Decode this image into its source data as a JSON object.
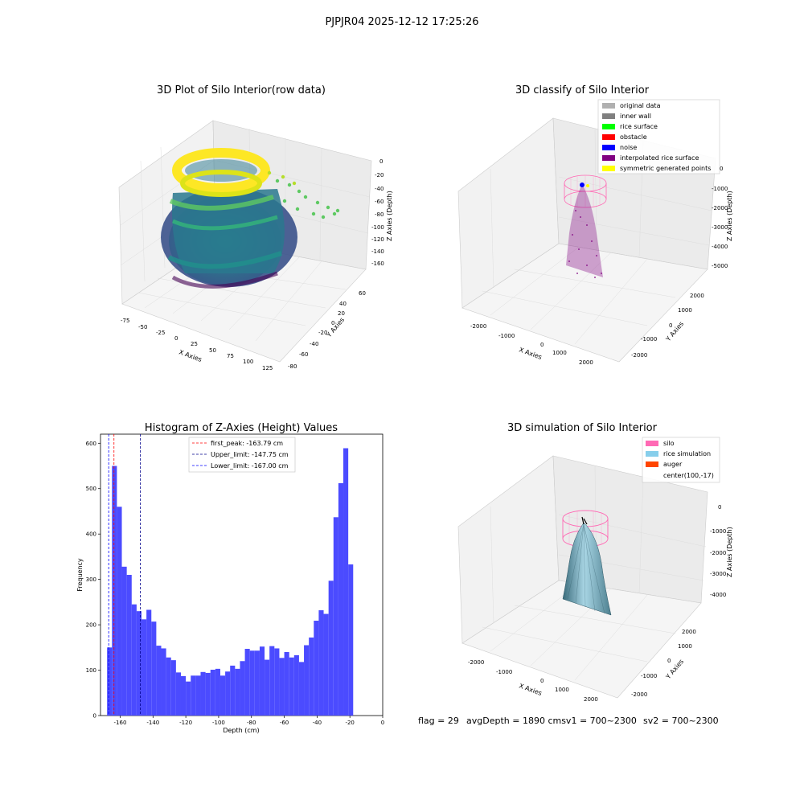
{
  "figure": {
    "title": "PJPJR04 2025-12-12 17:25:26",
    "footer": {
      "flag": "flag = 29",
      "avg_depth": "avgDepth = 1890 cmsv1 = 700~2300",
      "sv2": "sv2 = 700~2300"
    }
  },
  "chart_data": [
    {
      "type": "scatter3d",
      "title": "3D Plot of Silo Interior(row data)",
      "xlabel": "X Axies",
      "ylabel": "Y Axies",
      "zlabel": "Z Axies (Depth)",
      "xticks": [
        "-75",
        "-50",
        "-25",
        "0",
        "25",
        "50",
        "75",
        "100",
        "125"
      ],
      "yticks": [
        "60",
        "40",
        "20",
        "0",
        "-20",
        "-40",
        "-60",
        "-80"
      ],
      "zticks": [
        "0",
        "-20",
        "-40",
        "-60",
        "-80",
        "-100",
        "-120",
        "-140",
        "-160"
      ],
      "xlim": [
        -80,
        130
      ],
      "ylim": [
        -85,
        70
      ],
      "zlim": [
        -175,
        5
      ],
      "colormap": "viridis"
    },
    {
      "type": "scatter3d",
      "title": "3D classify of Silo Interior",
      "xlabel": "X Axies",
      "ylabel": "Y Axies",
      "zlabel": "Z Axies (Depth)",
      "xticks": [
        "-2000",
        "-1000",
        "0",
        "1000",
        "2000"
      ],
      "yticks": [
        "2000",
        "1000",
        "0",
        "-1000",
        "-2000"
      ],
      "zticks": [
        "0",
        "-1000",
        "-2000",
        "-3000",
        "-4000",
        "-5000"
      ],
      "legend_position": "top-right",
      "legend": [
        {
          "label": "original data",
          "color": "#b0b0b0"
        },
        {
          "label": "inner wall",
          "color": "#808080"
        },
        {
          "label": "rice surface",
          "color": "#00ff00"
        },
        {
          "label": "obstacle",
          "color": "#ff0000"
        },
        {
          "label": "noise",
          "color": "#0000ff"
        },
        {
          "label": "interpolated rice surface",
          "color": "#800080"
        },
        {
          "label": "symmetric generated points",
          "color": "#ffff00"
        }
      ]
    },
    {
      "type": "histogram",
      "title": "Histogram of Z-Axies (Height) Values",
      "xlabel": "Depth (cm)",
      "ylabel": "Frequency",
      "xlim": [
        -172,
        0
      ],
      "ylim": [
        0,
        620
      ],
      "xticks": [
        -160,
        -140,
        -120,
        -100,
        -80,
        -60,
        -40,
        -20,
        0
      ],
      "yticks": [
        0,
        100,
        200,
        300,
        400,
        500,
        600
      ],
      "bar_color": "#4b4bff",
      "bins": [
        -168,
        -165,
        -162,
        -159,
        -156,
        -153,
        -150,
        -147,
        -144,
        -141,
        -138,
        -135,
        -132,
        -129,
        -126,
        -123,
        -120,
        -117,
        -114,
        -111,
        -108,
        -105,
        -102,
        -99,
        -96,
        -93,
        -90,
        -87,
        -84,
        -81,
        -78,
        -75,
        -72,
        -69,
        -66,
        -63,
        -60,
        -57,
        -54,
        -51,
        -48,
        -45,
        -42,
        -39,
        -36,
        -33,
        -30,
        -27,
        -24,
        -21,
        -18,
        -15,
        -12,
        -9,
        -6
      ],
      "counts": [
        150,
        550,
        460,
        328,
        310,
        245,
        230,
        212,
        233,
        207,
        154,
        148,
        128,
        122,
        95,
        87,
        75,
        88,
        88,
        96,
        94,
        101,
        103,
        88,
        97,
        110,
        103,
        120,
        147,
        143,
        143,
        152,
        123,
        153,
        148,
        127,
        140,
        128,
        133,
        118,
        155,
        172,
        209,
        232,
        224,
        297,
        437,
        512,
        589,
        333,
        0,
        0,
        0,
        0
      ],
      "vlines": [
        {
          "label": "first_peak: -163.79 cm",
          "x": -163.79,
          "color": "#ff0000"
        },
        {
          "label": "Upper_limit: -147.75 cm",
          "x": -147.75,
          "color": "#00008b"
        },
        {
          "label": "Lower_limit: -167.00 cm",
          "x": -167.0,
          "color": "#0000ff"
        }
      ],
      "legend_position": "top-center"
    },
    {
      "type": "surface3d",
      "title": "3D simulation of Silo Interior",
      "xlabel": "X Axies",
      "ylabel": "Y Axies",
      "zlabel": "Z Axies (Depth)",
      "xticks": [
        "-2000",
        "-1000",
        "0",
        "1000",
        "2000"
      ],
      "yticks": [
        "2000",
        "1000",
        "0",
        "-1000",
        "-2000"
      ],
      "zticks": [
        "0",
        "-1000",
        "-2000",
        "-3000",
        "-4000"
      ],
      "legend_position": "top-right",
      "legend": [
        {
          "label": "silo",
          "color": "#ff69b4"
        },
        {
          "label": "rice simulation",
          "color": "#87ceeb"
        },
        {
          "label": "auger",
          "color": "#ff4500"
        },
        {
          "label": "center(100,-17)",
          "color": "none"
        }
      ]
    }
  ]
}
